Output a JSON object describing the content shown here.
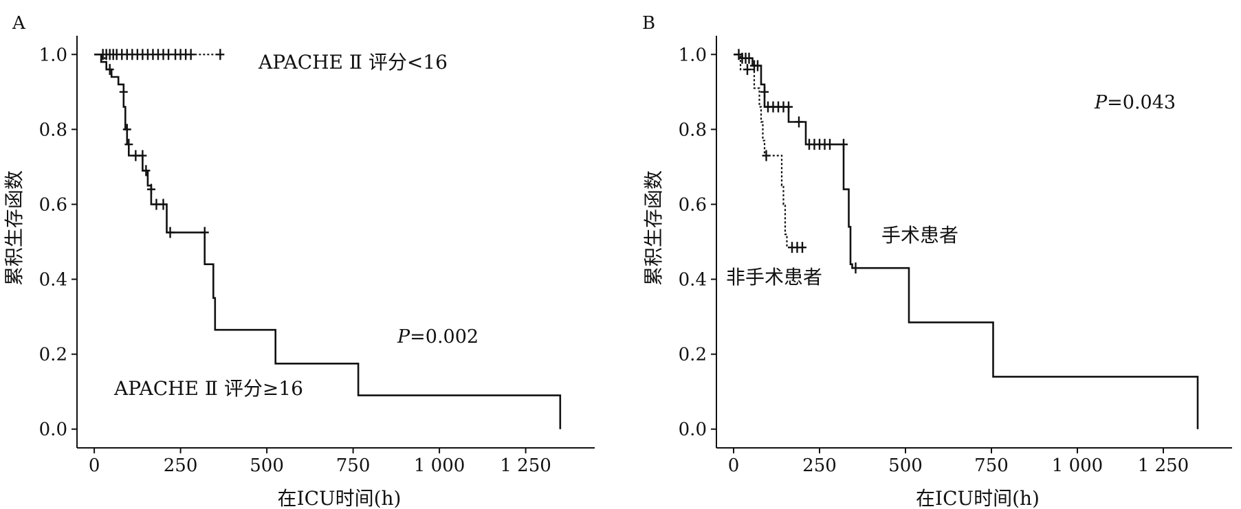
{
  "chart_data": [
    {
      "type": "line",
      "panel": "A",
      "xlabel": "在ICU时间(h)",
      "ylabel": "累积生存函数",
      "xlim": [
        -50,
        1450
      ],
      "ylim": [
        -0.05,
        1.05
      ],
      "x_ticks": [
        0,
        250,
        500,
        750,
        1000,
        1250
      ],
      "x_tick_labels": [
        "0",
        "250",
        "500",
        "750",
        "1 000",
        "1 250"
      ],
      "y_ticks": [
        0.0,
        0.2,
        0.4,
        0.6,
        0.8,
        1.0
      ],
      "y_tick_labels": [
        "0.0",
        "0.2",
        "0.4",
        "0.6",
        "0.8",
        "1.0"
      ],
      "series": [
        {
          "name": "APACHE Ⅱ 评分<16",
          "style": "dotted",
          "steps": [
            [
              0,
              1.0
            ],
            [
              20,
              1.0
            ],
            [
              20,
              0.98
            ],
            [
              30,
              0.98
            ],
            [
              30,
              1.0
            ],
            [
              365,
              1.0
            ]
          ],
          "censored": [
            [
              25,
              1.0
            ],
            [
              35,
              1.0
            ],
            [
              45,
              1.0
            ],
            [
              55,
              1.0
            ],
            [
              65,
              1.0
            ],
            [
              80,
              1.0
            ],
            [
              95,
              1.0
            ],
            [
              110,
              1.0
            ],
            [
              125,
              1.0
            ],
            [
              140,
              1.0
            ],
            [
              155,
              1.0
            ],
            [
              170,
              1.0
            ],
            [
              185,
              1.0
            ],
            [
              200,
              1.0
            ],
            [
              215,
              1.0
            ],
            [
              235,
              1.0
            ],
            [
              250,
              1.0
            ],
            [
              265,
              1.0
            ],
            [
              280,
              1.0
            ],
            [
              365,
              1.0
            ]
          ]
        },
        {
          "name": "APACHE Ⅱ 评分≥16",
          "style": "solid",
          "steps": [
            [
              0,
              1.0
            ],
            [
              20,
              1.0
            ],
            [
              20,
              0.98
            ],
            [
              35,
              0.98
            ],
            [
              35,
              0.96
            ],
            [
              50,
              0.96
            ],
            [
              50,
              0.94
            ],
            [
              70,
              0.94
            ],
            [
              70,
              0.92
            ],
            [
              85,
              0.92
            ],
            [
              85,
              0.86
            ],
            [
              90,
              0.86
            ],
            [
              90,
              0.8
            ],
            [
              95,
              0.8
            ],
            [
              95,
              0.76
            ],
            [
              100,
              0.76
            ],
            [
              100,
              0.73
            ],
            [
              140,
              0.73
            ],
            [
              140,
              0.69
            ],
            [
              155,
              0.69
            ],
            [
              155,
              0.65
            ],
            [
              165,
              0.65
            ],
            [
              165,
              0.6
            ],
            [
              210,
              0.6
            ],
            [
              210,
              0.525
            ],
            [
              320,
              0.525
            ],
            [
              320,
              0.44
            ],
            [
              345,
              0.44
            ],
            [
              345,
              0.35
            ],
            [
              350,
              0.35
            ],
            [
              350,
              0.265
            ],
            [
              525,
              0.265
            ],
            [
              525,
              0.175
            ],
            [
              765,
              0.175
            ],
            [
              765,
              0.09
            ],
            [
              1350,
              0.09
            ],
            [
              1350,
              0.0
            ]
          ],
          "censored": [
            [
              45,
              0.96
            ],
            [
              85,
              0.9
            ],
            [
              95,
              0.8
            ],
            [
              100,
              0.76
            ],
            [
              120,
              0.73
            ],
            [
              140,
              0.73
            ],
            [
              150,
              0.69
            ],
            [
              165,
              0.64
            ],
            [
              180,
              0.6
            ],
            [
              200,
              0.6
            ],
            [
              220,
              0.525
            ],
            [
              320,
              0.525
            ]
          ]
        }
      ],
      "annotations": [
        {
          "text": "APACHE Ⅱ 评分<16"
        },
        {
          "text": "APACHE Ⅱ 评分≥16"
        },
        {
          "text_italic": "P",
          "text": "=0.002"
        }
      ]
    },
    {
      "type": "line",
      "panel": "B",
      "xlabel": "在ICU时间(h)",
      "ylabel": "累积生存函数",
      "xlim": [
        -50,
        1450
      ],
      "ylim": [
        -0.05,
        1.05
      ],
      "x_ticks": [
        0,
        250,
        500,
        750,
        1000,
        1250
      ],
      "x_tick_labels": [
        "0",
        "250",
        "500",
        "750",
        "1 000",
        "1 250"
      ],
      "y_ticks": [
        0.0,
        0.2,
        0.4,
        0.6,
        0.8,
        1.0
      ],
      "y_tick_labels": [
        "0.0",
        "0.2",
        "0.4",
        "0.6",
        "0.8",
        "1.0"
      ],
      "series": [
        {
          "name": "非手术患者",
          "style": "dotted",
          "steps": [
            [
              0,
              1.0
            ],
            [
              20,
              1.0
            ],
            [
              20,
              0.96
            ],
            [
              60,
              0.96
            ],
            [
              60,
              0.91
            ],
            [
              75,
              0.91
            ],
            [
              75,
              0.86
            ],
            [
              80,
              0.86
            ],
            [
              80,
              0.82
            ],
            [
              85,
              0.82
            ],
            [
              85,
              0.77
            ],
            [
              90,
              0.77
            ],
            [
              90,
              0.73
            ],
            [
              140,
              0.73
            ],
            [
              140,
              0.65
            ],
            [
              145,
              0.65
            ],
            [
              145,
              0.6
            ],
            [
              150,
              0.6
            ],
            [
              150,
              0.52
            ],
            [
              155,
              0.52
            ],
            [
              155,
              0.485
            ],
            [
              210,
              0.485
            ]
          ],
          "censored": [
            [
              40,
              0.96
            ],
            [
              95,
              0.73
            ],
            [
              170,
              0.485
            ],
            [
              185,
              0.485
            ],
            [
              200,
              0.485
            ]
          ]
        },
        {
          "name": "手术患者",
          "style": "solid",
          "steps": [
            [
              0,
              1.0
            ],
            [
              25,
              1.0
            ],
            [
              25,
              0.99
            ],
            [
              55,
              0.99
            ],
            [
              55,
              0.97
            ],
            [
              80,
              0.97
            ],
            [
              80,
              0.92
            ],
            [
              90,
              0.92
            ],
            [
              90,
              0.86
            ],
            [
              160,
              0.86
            ],
            [
              160,
              0.82
            ],
            [
              210,
              0.82
            ],
            [
              210,
              0.76
            ],
            [
              320,
              0.76
            ],
            [
              320,
              0.64
            ],
            [
              335,
              0.64
            ],
            [
              335,
              0.54
            ],
            [
              340,
              0.54
            ],
            [
              340,
              0.44
            ],
            [
              345,
              0.44
            ],
            [
              345,
              0.43
            ],
            [
              510,
              0.43
            ],
            [
              510,
              0.285
            ],
            [
              755,
              0.285
            ],
            [
              755,
              0.14
            ],
            [
              1350,
              0.14
            ],
            [
              1350,
              0.0
            ]
          ],
          "censored": [
            [
              15,
              1.0
            ],
            [
              25,
              0.99
            ],
            [
              35,
              0.99
            ],
            [
              45,
              0.99
            ],
            [
              60,
              0.97
            ],
            [
              70,
              0.97
            ],
            [
              90,
              0.9
            ],
            [
              100,
              0.86
            ],
            [
              115,
              0.86
            ],
            [
              130,
              0.86
            ],
            [
              145,
              0.86
            ],
            [
              160,
              0.86
            ],
            [
              190,
              0.82
            ],
            [
              220,
              0.76
            ],
            [
              235,
              0.76
            ],
            [
              250,
              0.76
            ],
            [
              265,
              0.76
            ],
            [
              280,
              0.76
            ],
            [
              320,
              0.76
            ],
            [
              355,
              0.43
            ]
          ]
        }
      ],
      "annotations": [
        {
          "text": "手术患者"
        },
        {
          "text": "非手术患者"
        },
        {
          "text_italic": "P",
          "text": "=0.043"
        }
      ]
    }
  ]
}
